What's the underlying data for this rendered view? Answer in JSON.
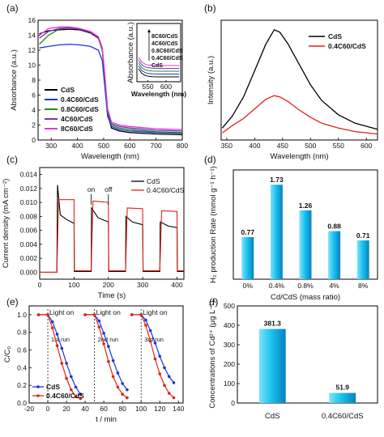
{
  "chart_data": [
    {
      "panel": "(a)",
      "type": "line",
      "xlabel": "Wavelength (nm)",
      "ylabel": "Absorbance (a.u.)",
      "xlim": [
        250,
        800
      ],
      "ylim": [
        0,
        16
      ],
      "xticks": [
        300,
        400,
        500,
        600,
        700,
        800
      ],
      "yticks": [
        0,
        2,
        4,
        6,
        8,
        10,
        12,
        14,
        16
      ],
      "legend_position": "lower-left",
      "series": [
        {
          "name": "CdS",
          "color": "#000000",
          "points": [
            [
              255,
              14.2
            ],
            [
              290,
              14.6
            ],
            [
              330,
              14.7
            ],
            [
              370,
              14.8
            ],
            [
              410,
              14.7
            ],
            [
              450,
              14.3
            ],
            [
              480,
              13.6
            ],
            [
              495,
              12.0
            ],
            [
              505,
              8.0
            ],
            [
              515,
              3.5
            ],
            [
              530,
              1.6
            ],
            [
              560,
              1.2
            ],
            [
              600,
              1.0
            ],
            [
              700,
              0.8
            ],
            [
              800,
              0.7
            ]
          ]
        },
        {
          "name": "0.4C60/CdS",
          "color": "#1a36d8",
          "points": [
            [
              255,
              12.3
            ],
            [
              290,
              12.5
            ],
            [
              330,
              12.7
            ],
            [
              370,
              12.8
            ],
            [
              410,
              12.7
            ],
            [
              450,
              12.5
            ],
            [
              480,
              12.0
            ],
            [
              495,
              10.6
            ],
            [
              505,
              7.0
            ],
            [
              515,
              3.2
            ],
            [
              530,
              1.8
            ],
            [
              560,
              1.4
            ],
            [
              600,
              1.2
            ],
            [
              700,
              1.0
            ],
            [
              800,
              0.9
            ]
          ]
        },
        {
          "name": "0.8C60/CdS",
          "color": "#1f8a2a",
          "points": [
            [
              255,
              12.8
            ],
            [
              290,
              14.0
            ],
            [
              330,
              14.8
            ],
            [
              370,
              15.0
            ],
            [
              410,
              14.8
            ],
            [
              450,
              14.4
            ],
            [
              480,
              13.7
            ],
            [
              495,
              12.0
            ],
            [
              505,
              8.2
            ],
            [
              515,
              3.8
            ],
            [
              530,
              2.0
            ],
            [
              560,
              1.6
            ],
            [
              600,
              1.4
            ],
            [
              700,
              1.1
            ],
            [
              800,
              1.0
            ]
          ]
        },
        {
          "name": "4C60/CdS",
          "color": "#7a2fb5",
          "points": [
            [
              255,
              13.6
            ],
            [
              290,
              14.5
            ],
            [
              330,
              14.9
            ],
            [
              370,
              15.0
            ],
            [
              410,
              14.8
            ],
            [
              450,
              14.4
            ],
            [
              480,
              13.7
            ],
            [
              495,
              12.2
            ],
            [
              505,
              8.4
            ],
            [
              515,
              4.0
            ],
            [
              530,
              2.2
            ],
            [
              560,
              1.8
            ],
            [
              600,
              1.6
            ],
            [
              700,
              1.3
            ],
            [
              800,
              1.2
            ]
          ]
        },
        {
          "name": "8C60/CdS",
          "color": "#e03ad0",
          "points": [
            [
              255,
              14.0
            ],
            [
              290,
              14.9
            ],
            [
              330,
              15.1
            ],
            [
              370,
              15.1
            ],
            [
              410,
              14.9
            ],
            [
              450,
              14.5
            ],
            [
              480,
              13.8
            ],
            [
              495,
              12.3
            ],
            [
              505,
              8.6
            ],
            [
              515,
              4.2
            ],
            [
              530,
              2.4
            ],
            [
              560,
              2.0
            ],
            [
              600,
              1.8
            ],
            [
              700,
              1.5
            ],
            [
              800,
              1.4
            ]
          ]
        }
      ],
      "inset": {
        "xlabel": "Wavelength (nm)",
        "ylabel": "Absorbance (a.u.)",
        "xticks": [
          550,
          600
        ],
        "xlim": [
          520,
          640
        ],
        "labels_top_to_bottom": [
          "8C60/CdS",
          "4C60/CdS",
          "0.8C60/CdS",
          "0.4C60/CdS",
          "CdS"
        ]
      }
    },
    {
      "panel": "(b)",
      "type": "line",
      "xlabel": "Wavelength (nm)",
      "ylabel": "Intensity (a.u.)",
      "xlim": [
        340,
        620
      ],
      "xticks": [
        350,
        400,
        450,
        500,
        550,
        600
      ],
      "legend_position": "top-right",
      "series": [
        {
          "name": "CdS",
          "color": "#000000",
          "points": [
            [
              342,
              0.1
            ],
            [
              360,
              0.2
            ],
            [
              380,
              0.36
            ],
            [
              400,
              0.58
            ],
            [
              420,
              0.8
            ],
            [
              435,
              0.92
            ],
            [
              445,
              0.9
            ],
            [
              460,
              0.8
            ],
            [
              480,
              0.63
            ],
            [
              500,
              0.46
            ],
            [
              520,
              0.33
            ],
            [
              550,
              0.21
            ],
            [
              580,
              0.14
            ],
            [
              620,
              0.09
            ]
          ]
        },
        {
          "name": "0.4C60/CdS",
          "color": "#e0221a",
          "points": [
            [
              342,
              0.06
            ],
            [
              360,
              0.12
            ],
            [
              380,
              0.18
            ],
            [
              400,
              0.26
            ],
            [
              420,
              0.34
            ],
            [
              435,
              0.37
            ],
            [
              445,
              0.36
            ],
            [
              460,
              0.32
            ],
            [
              480,
              0.25
            ],
            [
              500,
              0.19
            ],
            [
              520,
              0.14
            ],
            [
              550,
              0.1
            ],
            [
              580,
              0.07
            ],
            [
              620,
              0.05
            ]
          ]
        }
      ]
    },
    {
      "panel": "(c)",
      "type": "line",
      "xlabel": "Time (s)",
      "ylabel": "Current density (mA cm⁻²)",
      "xlim": [
        0,
        420
      ],
      "ylim": [
        -0.001,
        0.015
      ],
      "xticks": [
        0,
        100,
        200,
        300,
        400
      ],
      "yticks": [
        0.0,
        0.002,
        0.004,
        0.006,
        0.008,
        0.01,
        0.012,
        0.014
      ],
      "annotations": [
        "on",
        "off"
      ],
      "legend_position": "top-right",
      "series": [
        {
          "name": "CdS",
          "color": "#000000",
          "points": [
            [
              0,
              0.0
            ],
            [
              50,
              0.0
            ],
            [
              52,
              0.0125
            ],
            [
              60,
              0.0082
            ],
            [
              80,
              0.0075
            ],
            [
              100,
              0.007
            ],
            [
              101,
              0.0001
            ],
            [
              150,
              0.0001
            ],
            [
              151,
              0.0092
            ],
            [
              170,
              0.0078
            ],
            [
              200,
              0.0072
            ],
            [
              201,
              0.0001
            ],
            [
              250,
              0.0001
            ],
            [
              251,
              0.008
            ],
            [
              270,
              0.0072
            ],
            [
              300,
              0.0068
            ],
            [
              301,
              0.0001
            ],
            [
              350,
              0.0001
            ],
            [
              351,
              0.0072
            ],
            [
              375,
              0.0066
            ],
            [
              400,
              0.0064
            ],
            [
              401,
              0.0001
            ],
            [
              420,
              0.0001
            ]
          ]
        },
        {
          "name": "0.4C60/CdS",
          "color": "#e0221a",
          "points": [
            [
              0,
              0.0
            ],
            [
              50,
              0.0
            ],
            [
              55,
              0.0104
            ],
            [
              100,
              0.0104
            ],
            [
              101,
              0.0002
            ],
            [
              150,
              0.0002
            ],
            [
              155,
              0.0102
            ],
            [
              200,
              0.01
            ],
            [
              201,
              0.0002
            ],
            [
              250,
              0.0002
            ],
            [
              255,
              0.0092
            ],
            [
              300,
              0.0091
            ],
            [
              301,
              0.0002
            ],
            [
              350,
              0.0002
            ],
            [
              355,
              0.0088
            ],
            [
              400,
              0.0087
            ],
            [
              401,
              0.0002
            ],
            [
              420,
              0.0002
            ]
          ]
        }
      ]
    },
    {
      "panel": "(d)",
      "type": "bar",
      "xlabel": "Cd/CdS (mass ratio)",
      "ylabel": "H₂ production Rate (mmol g⁻¹ h⁻¹)",
      "categories": [
        "0%",
        "0.4%",
        "0.8%",
        "4%",
        "8%"
      ],
      "values": [
        0.77,
        1.73,
        1.26,
        0.88,
        0.71
      ],
      "value_labels": [
        "0.77",
        "1.73",
        "1.26",
        "0.88",
        "0.71"
      ],
      "ylim": [
        0,
        2.0
      ],
      "bar_color": "#19c4ee"
    },
    {
      "panel": "(e)",
      "type": "line",
      "xlabel": "t / min",
      "ylabel": "C/C₀",
      "xlim": [
        -20,
        145
      ],
      "ylim": [
        0,
        1.1
      ],
      "xticks": [
        -20,
        -10,
        0,
        10,
        20,
        30,
        40,
        50,
        60,
        70,
        80,
        90,
        100,
        110,
        120,
        130,
        140
      ],
      "xtick_labels": [
        "-20",
        "0",
        "20",
        "40",
        "60",
        "80",
        "100",
        "120",
        "140"
      ],
      "yticks": [
        0.0,
        0.2,
        0.4,
        0.6,
        0.8,
        1.0
      ],
      "annotations": [
        "Light on",
        "Light on",
        "Light on",
        "1st run",
        "2nd run",
        "3rd run"
      ],
      "legend_position": "lower-left",
      "series": [
        {
          "name": "CdS",
          "color": "#1a36d8",
          "points": [
            [
              -10,
              1.0
            ],
            [
              0,
              1.0
            ],
            [
              5,
              0.92
            ],
            [
              10,
              0.78
            ],
            [
              15,
              0.62
            ],
            [
              20,
              0.45
            ],
            [
              25,
              0.3
            ],
            [
              30,
              0.18
            ],
            [
              35,
              0.1
            ],
            null,
            [
              40,
              1.0
            ],
            [
              50,
              1.0
            ],
            [
              55,
              0.93
            ],
            [
              60,
              0.79
            ],
            [
              65,
              0.64
            ],
            [
              70,
              0.48
            ],
            [
              75,
              0.34
            ],
            [
              80,
              0.22
            ],
            [
              85,
              0.15
            ],
            null,
            [
              90,
              1.0
            ],
            [
              100,
              1.0
            ],
            [
              105,
              0.94
            ],
            [
              110,
              0.82
            ],
            [
              115,
              0.68
            ],
            [
              120,
              0.53
            ],
            [
              125,
              0.4
            ],
            [
              130,
              0.3
            ],
            [
              135,
              0.23
            ]
          ]
        },
        {
          "name": "0.4C60/CdS",
          "color": "#e0221a",
          "points": [
            [
              -10,
              1.0
            ],
            [
              0,
              1.0
            ],
            [
              5,
              0.85
            ],
            [
              10,
              0.65
            ],
            [
              15,
              0.45
            ],
            [
              20,
              0.28
            ],
            [
              25,
              0.15
            ],
            [
              30,
              0.07
            ],
            [
              35,
              0.05
            ],
            null,
            [
              40,
              1.0
            ],
            [
              50,
              1.0
            ],
            [
              55,
              0.86
            ],
            [
              60,
              0.67
            ],
            [
              65,
              0.47
            ],
            [
              70,
              0.3
            ],
            [
              75,
              0.18
            ],
            [
              80,
              0.1
            ],
            [
              85,
              0.06
            ],
            null,
            [
              90,
              1.0
            ],
            [
              100,
              1.0
            ],
            [
              105,
              0.88
            ],
            [
              110,
              0.7
            ],
            [
              115,
              0.5
            ],
            [
              120,
              0.33
            ],
            [
              125,
              0.2
            ],
            [
              130,
              0.11
            ],
            [
              135,
              0.06
            ]
          ]
        }
      ]
    },
    {
      "panel": "(f)",
      "type": "bar",
      "ylabel": "Concentrations of Cd²⁺ (μg L⁻¹)",
      "categories": [
        "CdS",
        "0.4C60/CdS"
      ],
      "values": [
        381.3,
        51.9
      ],
      "value_labels": [
        "381.3",
        "51.9"
      ],
      "ylim": [
        0,
        500
      ],
      "yticks": [
        0,
        100,
        200,
        300,
        400,
        500
      ],
      "bar_color": "#19c4ee"
    }
  ]
}
